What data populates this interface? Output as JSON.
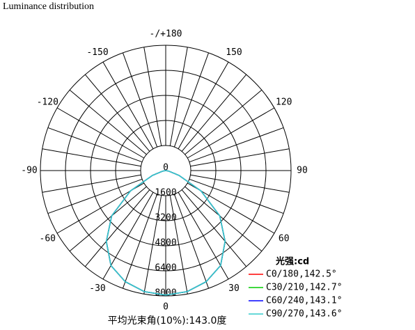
{
  "chart_data": {
    "type": "polar",
    "title": "Luminance distribution",
    "angles": [
      -90,
      -80,
      -70,
      -60,
      -50,
      -40,
      -30,
      -20,
      -10,
      0,
      10,
      20,
      30,
      40,
      50,
      60,
      70,
      80,
      90
    ],
    "angle_ticks": [
      {
        "value": 180,
        "label": "-/+180"
      },
      150,
      120,
      90,
      60,
      30,
      0,
      -30,
      -60,
      -90,
      -120,
      -150
    ],
    "rlim": [
      0,
      8000
    ],
    "rticks": [
      0,
      1600,
      3200,
      4800,
      6400,
      8000
    ],
    "legend_title": "光强:cd",
    "series": [
      {
        "name": "C0/180,142.5°",
        "color": "#ff0000",
        "values": [
          0,
          200,
          900,
          2600,
          4500,
          5900,
          7000,
          7550,
          7850,
          7950,
          7850,
          7550,
          7000,
          5900,
          4500,
          2600,
          900,
          200,
          0
        ]
      },
      {
        "name": "C30/210,142.7°",
        "color": "#00cc00",
        "values": [
          0,
          200,
          900,
          2600,
          4500,
          5900,
          7000,
          7550,
          7850,
          7950,
          7850,
          7550,
          7000,
          5900,
          4500,
          2600,
          900,
          200,
          0
        ]
      },
      {
        "name": "C60/240,143.1°",
        "color": "#0000ff",
        "values": [
          0,
          200,
          900,
          2600,
          4500,
          5900,
          7000,
          7550,
          7850,
          7950,
          7850,
          7550,
          7000,
          5900,
          4500,
          2600,
          900,
          200,
          0
        ]
      },
      {
        "name": "C90/270,143.6°",
        "color": "#33cccc",
        "values": [
          0,
          200,
          900,
          2600,
          4500,
          5900,
          7000,
          7550,
          7850,
          7950,
          7850,
          7550,
          7000,
          5900,
          4500,
          2600,
          900,
          200,
          0
        ]
      }
    ],
    "footer": "平均光束角(10%):143.0度"
  }
}
